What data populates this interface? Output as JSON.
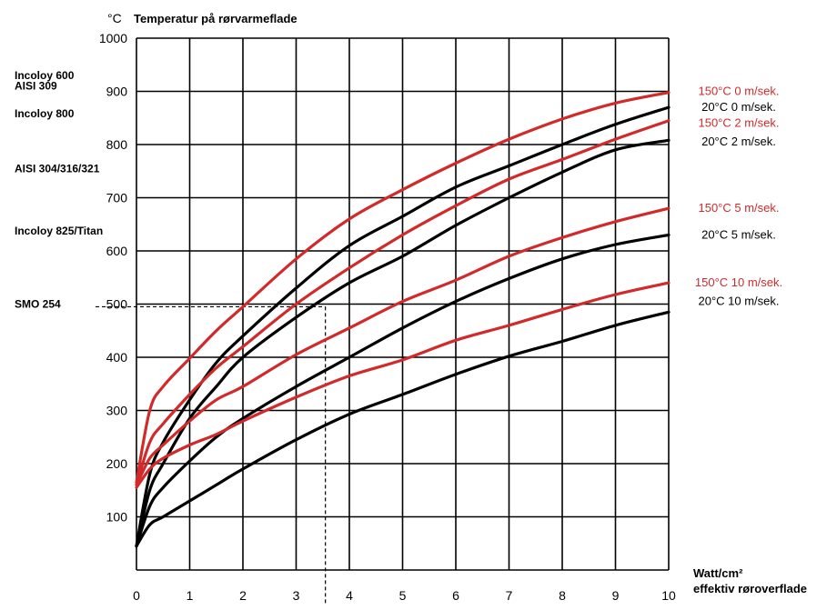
{
  "chart_data": {
    "type": "line",
    "title": "Temperatur på rørvarmeflade",
    "unit_label": "°C",
    "xlabel": "Watt/cm²",
    "xlabel_line2": "effektiv røroverflade",
    "ylabel": "",
    "xlim": [
      0,
      10
    ],
    "ylim": [
      0,
      1000
    ],
    "x_ticks": [
      "0",
      "1",
      "2",
      "3",
      "4",
      "5",
      "6",
      "7",
      "8",
      "9",
      "10"
    ],
    "y_ticks": [
      "100",
      "200",
      "300",
      "400",
      "500",
      "600",
      "700",
      "800",
      "900",
      "1000"
    ],
    "grid": true,
    "material_labels": [
      {
        "text": "Incoloy 600",
        "y": 930
      },
      {
        "text": "AISI 309",
        "y": 910
      },
      {
        "text": "Incoloy 800",
        "y": 858
      },
      {
        "text": "AISI 304/316/321",
        "y": 755
      },
      {
        "text": "Incoloy 825/Titan",
        "y": 638
      },
      {
        "text": "SMO 254",
        "y": 500
      }
    ],
    "reference_point": {
      "x": 3.55,
      "y": 495
    },
    "series": [
      {
        "name": "150°C 0 m/sek.",
        "color": "#d02a2a",
        "label_y": 900,
        "x": [
          0,
          0.25,
          0.5,
          1,
          1.5,
          2,
          3,
          4,
          5,
          6,
          7,
          8,
          9,
          10
        ],
        "y": [
          165,
          300,
          345,
          398,
          450,
          495,
          585,
          660,
          715,
          765,
          810,
          848,
          878,
          898
        ]
      },
      {
        "name": "20°C 0 m/sek.",
        "color": "#000000",
        "label_y": 870,
        "x": [
          0,
          0.25,
          0.5,
          1,
          1.5,
          2,
          3,
          4,
          5,
          6,
          7,
          8,
          9,
          10
        ],
        "y": [
          45,
          180,
          240,
          320,
          390,
          440,
          530,
          610,
          665,
          720,
          760,
          800,
          838,
          870
        ]
      },
      {
        "name": "150°C 2 m/sek.",
        "color": "#d02a2a",
        "label_y": 840,
        "x": [
          0,
          0.25,
          0.5,
          1,
          1.5,
          2,
          3,
          4,
          5,
          6,
          7,
          8,
          9,
          10
        ],
        "y": [
          160,
          240,
          275,
          330,
          380,
          420,
          500,
          568,
          630,
          685,
          735,
          772,
          810,
          845
        ]
      },
      {
        "name": "20°C 2 m/sek.",
        "color": "#000000",
        "label_y": 805,
        "x": [
          0,
          0.25,
          0.5,
          1,
          1.5,
          2,
          3,
          4,
          5,
          6,
          7,
          8,
          9,
          10
        ],
        "y": [
          45,
          150,
          200,
          285,
          345,
          400,
          475,
          540,
          590,
          648,
          700,
          748,
          790,
          808
        ]
      },
      {
        "name": "150°C 5 m/sek.",
        "color": "#d02a2a",
        "label_y": 680,
        "x": [
          0,
          0.25,
          0.5,
          1,
          1.5,
          2,
          3,
          4,
          5,
          6,
          7,
          8,
          9,
          10
        ],
        "y": [
          160,
          210,
          235,
          280,
          320,
          345,
          405,
          455,
          505,
          545,
          590,
          625,
          655,
          680
        ]
      },
      {
        "name": "20°C 5 m/sek.",
        "color": "#000000",
        "label_y": 630,
        "x": [
          0,
          0.25,
          0.5,
          1,
          1.5,
          2,
          3,
          4,
          5,
          6,
          7,
          8,
          9,
          10
        ],
        "y": [
          45,
          120,
          155,
          205,
          250,
          285,
          345,
          400,
          455,
          505,
          548,
          585,
          612,
          630
        ]
      },
      {
        "name": "150°C 10 m/sek.",
        "color": "#d02a2a",
        "label_y": 540,
        "x": [
          0,
          0.25,
          0.5,
          1,
          1.5,
          2,
          3,
          4,
          5,
          6,
          7,
          8,
          9,
          10
        ],
        "y": [
          155,
          190,
          210,
          235,
          255,
          280,
          325,
          365,
          395,
          432,
          460,
          490,
          518,
          540
        ]
      },
      {
        "name": "20°C 10 m/sek.",
        "color": "#000000",
        "label_y": 505,
        "x": [
          0,
          0.25,
          0.5,
          1,
          1.5,
          2,
          3,
          4,
          5,
          6,
          7,
          8,
          9,
          10
        ],
        "y": [
          45,
          85,
          100,
          130,
          160,
          190,
          245,
          293,
          330,
          368,
          402,
          430,
          460,
          485
        ]
      }
    ]
  }
}
